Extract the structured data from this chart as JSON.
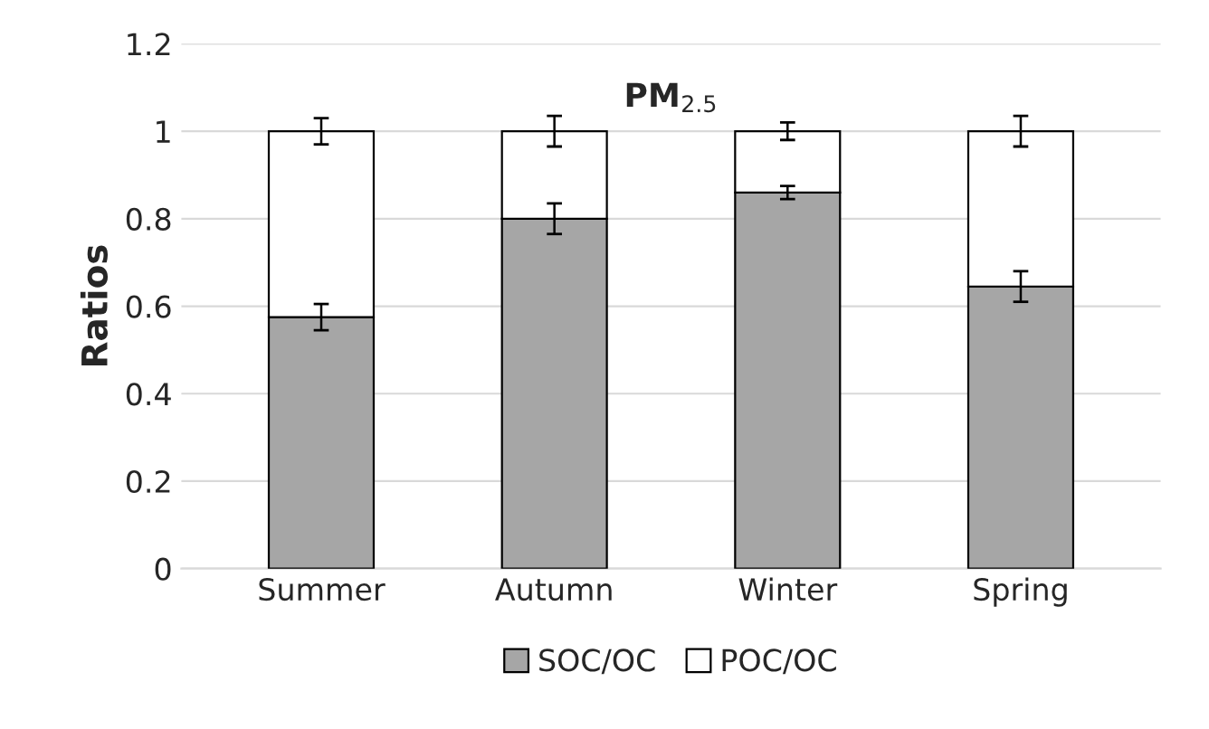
{
  "chart_data": {
    "type": "bar",
    "title": "PM$_{2.5}$",
    "ylabel": "Ratios",
    "categories": [
      "Summer",
      "Autumn",
      "Winter",
      "Spring"
    ],
    "stacked": true,
    "series": [
      {
        "name": "SOC/OC",
        "color": "#a6a6a6",
        "values": [
          0.575,
          0.8,
          0.86,
          0.645
        ],
        "errors": [
          0.03,
          0.035,
          0.015,
          0.035
        ]
      },
      {
        "name": "POC/OC",
        "color": "#ffffff",
        "values": [
          0.425,
          0.2,
          0.14,
          0.355
        ],
        "errors": [
          0.03,
          0.035,
          0.02,
          0.035
        ]
      }
    ],
    "ylim": [
      0,
      1.2
    ],
    "yticks": [
      0,
      0.2,
      0.4,
      0.6,
      0.8,
      1,
      1.2
    ],
    "grid": "y",
    "legend": "bottom"
  }
}
